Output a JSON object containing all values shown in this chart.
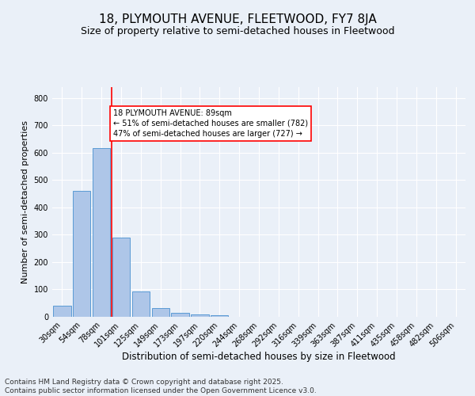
{
  "title": "18, PLYMOUTH AVENUE, FLEETWOOD, FY7 8JA",
  "subtitle": "Size of property relative to semi-detached houses in Fleetwood",
  "xlabel": "Distribution of semi-detached houses by size in Fleetwood",
  "ylabel": "Number of semi-detached properties",
  "categories": [
    "30sqm",
    "54sqm",
    "78sqm",
    "101sqm",
    "125sqm",
    "149sqm",
    "173sqm",
    "197sqm",
    "220sqm",
    "244sqm",
    "268sqm",
    "292sqm",
    "316sqm",
    "339sqm",
    "363sqm",
    "387sqm",
    "411sqm",
    "435sqm",
    "458sqm",
    "482sqm",
    "506sqm"
  ],
  "values": [
    40,
    460,
    618,
    290,
    93,
    33,
    15,
    9,
    5,
    0,
    0,
    0,
    0,
    0,
    0,
    0,
    0,
    0,
    0,
    0,
    0
  ],
  "bar_color": "#aec6e8",
  "bar_edge_color": "#5a9bd5",
  "vline_x": 2.5,
  "vline_color": "red",
  "annotation_text": "18 PLYMOUTH AVENUE: 89sqm\n← 51% of semi-detached houses are smaller (782)\n47% of semi-detached houses are larger (727) →",
  "annotation_box_color": "white",
  "annotation_box_edge_color": "red",
  "ylim": [
    0,
    840
  ],
  "yticks": [
    0,
    100,
    200,
    300,
    400,
    500,
    600,
    700,
    800
  ],
  "footer_text": "Contains HM Land Registry data © Crown copyright and database right 2025.\nContains public sector information licensed under the Open Government Licence v3.0.",
  "background_color": "#eaf0f8",
  "plot_background_color": "#eaf0f8",
  "title_fontsize": 11,
  "subtitle_fontsize": 9,
  "xlabel_fontsize": 8.5,
  "ylabel_fontsize": 8,
  "footer_fontsize": 6.5,
  "grid_color": "white",
  "tick_fontsize": 7
}
